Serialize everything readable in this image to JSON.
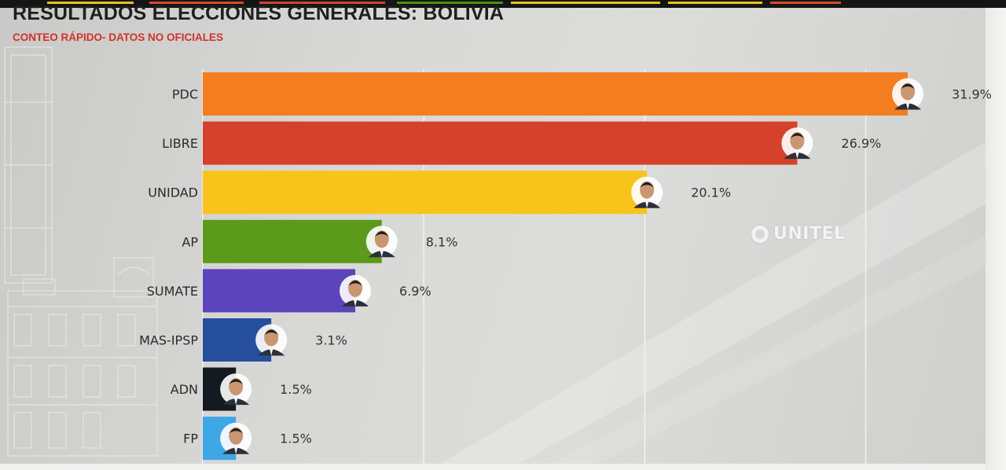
{
  "header": {
    "title": "RESULTADOS ELECCIONES GENERALES: BOLIVIA",
    "subtitle": "CONTEO RÁPIDO- DATOS NO OFICIALES"
  },
  "watermark": {
    "text": "UNITEL",
    "icon": "unitel-logo-ring-icon"
  },
  "chart_data": {
    "type": "bar",
    "orientation": "horizontal",
    "title": "RESULTADOS ELECCIONES GENERALES: BOLIVIA",
    "subtitle": "CONTEO RÁPIDO- DATOS NO OFICIALES",
    "xlabel": "",
    "ylabel": "",
    "unit": "%",
    "xlim": [
      0,
      32
    ],
    "grid": true,
    "legend": "none",
    "categories": [
      "PDC",
      "LIBRE",
      "UNIDAD",
      "AP",
      "SUMATE",
      "MAS-IPSP",
      "ADN",
      "FP"
    ],
    "values": [
      31.9,
      26.9,
      20.1,
      8.1,
      6.9,
      3.1,
      1.5,
      1.5
    ],
    "value_labels": [
      "31.9%",
      "26.9%",
      "20.1%",
      "8.1%",
      "6.9%",
      "3.1%",
      "1.5%",
      "1.5%"
    ],
    "colors": [
      "#f47d20",
      "#d5412a",
      "#f8c41c",
      "#5b9a1a",
      "#5c44bc",
      "#254f9c",
      "#141a22",
      "#3ea7e6"
    ],
    "candidate_icons": [
      "candidate-portrait-icon",
      "candidate-portrait-icon",
      "candidate-portrait-icon",
      "candidate-portrait-icon",
      "candidate-portrait-icon",
      "candidate-portrait-icon",
      "candidate-portrait-icon",
      "candidate-portrait-icon"
    ]
  }
}
